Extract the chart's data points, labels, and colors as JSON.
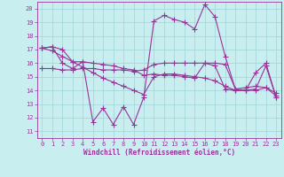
{
  "xlabel": "Windchill (Refroidissement éolien,°C)",
  "xlim": [
    -0.5,
    23.5
  ],
  "ylim": [
    10.5,
    20.5
  ],
  "yticks": [
    11,
    12,
    13,
    14,
    15,
    16,
    17,
    18,
    19,
    20
  ],
  "xticks": [
    0,
    1,
    2,
    3,
    4,
    5,
    6,
    7,
    8,
    9,
    10,
    11,
    12,
    13,
    14,
    15,
    16,
    17,
    18,
    19,
    20,
    21,
    22,
    23
  ],
  "bg_color": "#c8eef0",
  "grid_color": "#a0d4d8",
  "line_color": "#993399",
  "series": [
    [
      17.1,
      17.2,
      17.0,
      16.1,
      16.1,
      16.0,
      15.9,
      15.8,
      15.6,
      15.5,
      15.1,
      15.2,
      15.1,
      15.1,
      15.0,
      14.9,
      16.0,
      15.8,
      14.1,
      14.0,
      14.0,
      15.3,
      16.0,
      13.5
    ],
    [
      17.1,
      17.2,
      16.0,
      15.6,
      16.1,
      11.7,
      12.7,
      11.5,
      12.8,
      11.5,
      13.5,
      19.1,
      19.5,
      19.2,
      19.0,
      18.5,
      20.3,
      19.4,
      16.5,
      14.1,
      14.0,
      14.1,
      15.8,
      13.5
    ],
    [
      15.6,
      15.6,
      15.5,
      15.5,
      15.6,
      15.6,
      15.5,
      15.5,
      15.5,
      15.4,
      15.5,
      15.9,
      16.0,
      16.0,
      16.0,
      16.0,
      16.0,
      16.0,
      15.9,
      14.1,
      14.2,
      14.3,
      14.2,
      13.8
    ],
    [
      17.1,
      16.9,
      16.5,
      16.1,
      15.7,
      15.3,
      14.9,
      14.6,
      14.3,
      14.0,
      13.7,
      15.0,
      15.2,
      15.2,
      15.1,
      15.0,
      14.9,
      14.7,
      14.3,
      14.0,
      14.0,
      14.0,
      14.2,
      13.6
    ]
  ],
  "marker": "+",
  "markersize": 4,
  "linewidth": 0.8
}
